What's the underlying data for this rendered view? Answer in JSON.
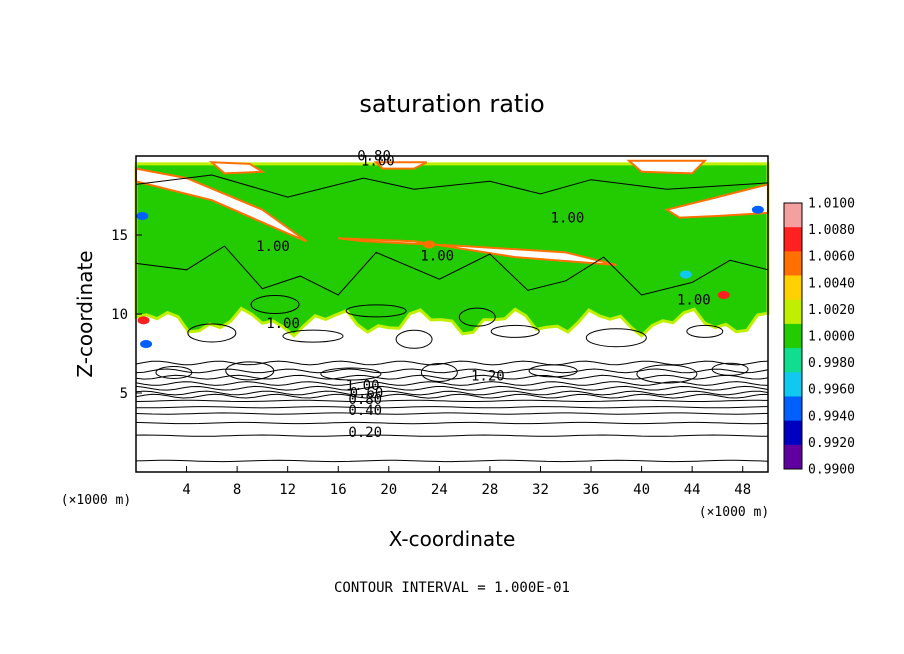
{
  "chart_data": {
    "type": "heatmap",
    "title": "saturation ratio",
    "xlabel": "X-coordinate",
    "ylabel": "Z-coordinate",
    "x_unit": "(×1000 m)",
    "y_unit": "(×1000 m)",
    "xlim": [
      0,
      50
    ],
    "ylim": [
      0,
      20
    ],
    "x_ticks": [
      "4",
      "8",
      "12",
      "16",
      "20",
      "24",
      "28",
      "32",
      "36",
      "40",
      "44",
      "48"
    ],
    "y_ticks": [
      "5",
      "10",
      "15"
    ],
    "colorbar": {
      "labels": [
        "1.0100",
        "1.0080",
        "1.0060",
        "1.0040",
        "1.0020",
        "1.0000",
        "0.9980",
        "0.9960",
        "0.9940",
        "0.9920",
        "0.9900"
      ],
      "colors": [
        "#f4a0a0",
        "#ff2020",
        "#ff7000",
        "#ffd000",
        "#c0f000",
        "#22cc00",
        "#10dd90",
        "#10c8f0",
        "#0060ff",
        "#0000c0",
        "#6000a0"
      ]
    },
    "contour_labels": [
      "0.80",
      "1.00",
      "1.00",
      "1.00",
      "1.00",
      "1.00",
      "1.00",
      "1.20",
      "1.00",
      "0.60",
      "0.80",
      "0.40",
      "0.20"
    ],
    "contour_levels": [
      0.2,
      0.4,
      0.6,
      0.8,
      1.0,
      1.2
    ],
    "green_region": {
      "z_bottom": 9.5,
      "z_top": 19.5
    },
    "footer": "CONTOUR INTERVAL = 1.000E-01"
  }
}
